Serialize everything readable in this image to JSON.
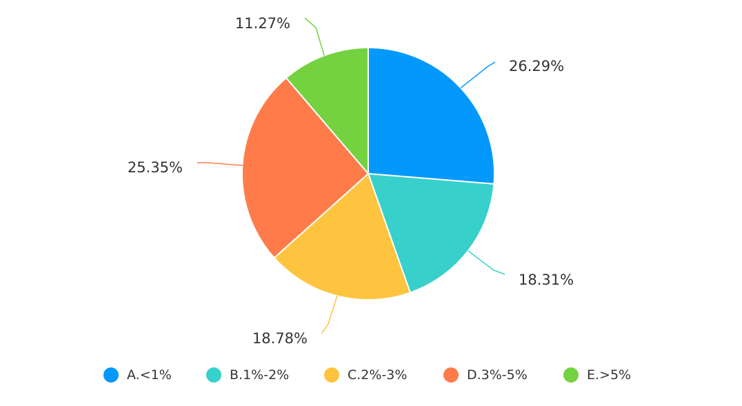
{
  "chart_data": {
    "type": "pie",
    "title": "",
    "legend_position": "bottom",
    "slices": [
      {
        "name": "A.<1%",
        "value": 26.29,
        "label": "26.29%",
        "color": "#0398FB"
      },
      {
        "name": "B.1%-2%",
        "value": 18.31,
        "label": "18.31%",
        "color": "#37D0CB"
      },
      {
        "name": "C.2%-3%",
        "value": 18.78,
        "label": "18.78%",
        "color": "#FFC43F"
      },
      {
        "name": "D.3%-5%",
        "value": 25.35,
        "label": "25.35%",
        "color": "#FF7C4A"
      },
      {
        "name": "E.>5%",
        "value": 11.27,
        "label": "11.27%",
        "color": "#74D241"
      }
    ]
  }
}
